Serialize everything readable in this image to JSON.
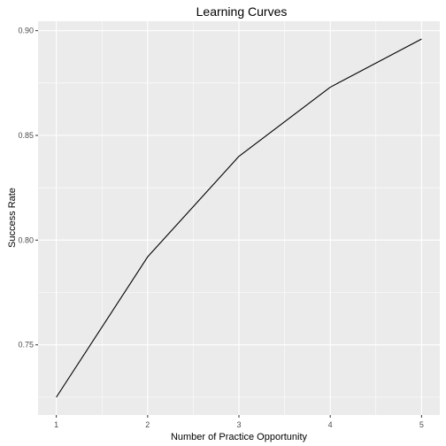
{
  "chart_data": {
    "type": "line",
    "title": "Learning Curves",
    "xlabel": "Number of Practice Opportunity",
    "ylabel": "Success Rate",
    "x": [
      1,
      2,
      3,
      4,
      5
    ],
    "series": [
      {
        "values": [
          0.725,
          0.792,
          0.84,
          0.873,
          0.896
        ]
      }
    ],
    "xlim": [
      0.8,
      5.2
    ],
    "ylim": [
      0.7165,
      0.9045
    ],
    "x_ticks": [
      "1",
      "2",
      "3",
      "4",
      "5"
    ],
    "y_ticks": [
      "0.75",
      "0.80",
      "0.85",
      "0.90"
    ],
    "y_tick_values": [
      0.75,
      0.8,
      0.85,
      0.9
    ],
    "grid": true,
    "colors": {
      "panel_background": "#EBEBEB",
      "grid_major": "#FFFFFF",
      "line": "#000000",
      "tick_label": "#4D4D4D"
    }
  }
}
